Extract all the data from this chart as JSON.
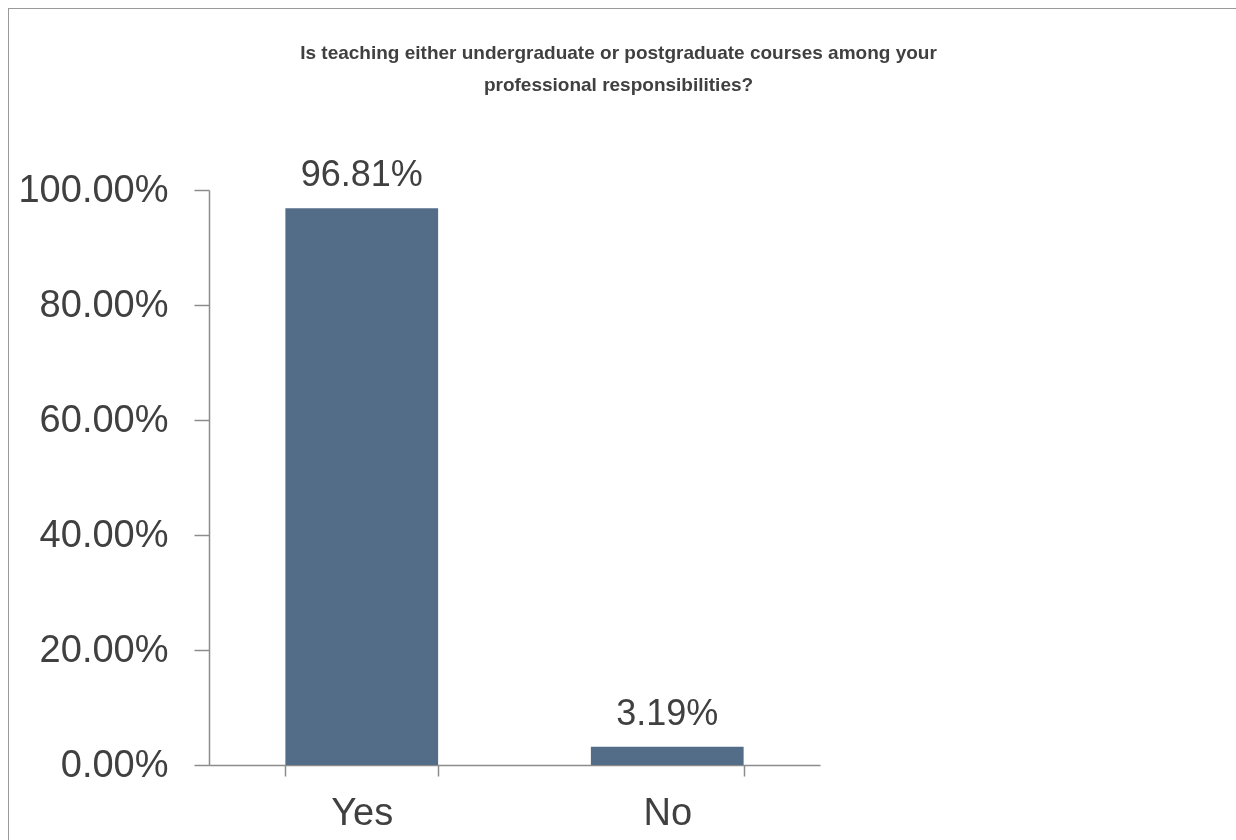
{
  "chart_data": {
    "type": "bar",
    "title": "Is teaching either undergraduate or postgraduate courses among your professional responsibilities?",
    "categories": [
      "Yes",
      "No"
    ],
    "values": [
      96.81,
      3.19
    ],
    "color": "#536d89",
    "value_labels": [
      "96.81%",
      "3.19%"
    ],
    "ylim": [
      0,
      100
    ],
    "yticks": [
      {
        "value": 0,
        "label": "0.00%"
      },
      {
        "value": 20,
        "label": "20.00%"
      },
      {
        "value": 40,
        "label": "40.00%"
      },
      {
        "value": 60,
        "label": "60.00%"
      },
      {
        "value": 80,
        "label": "80.00%"
      },
      {
        "value": 100,
        "label": "100.00%"
      }
    ]
  }
}
